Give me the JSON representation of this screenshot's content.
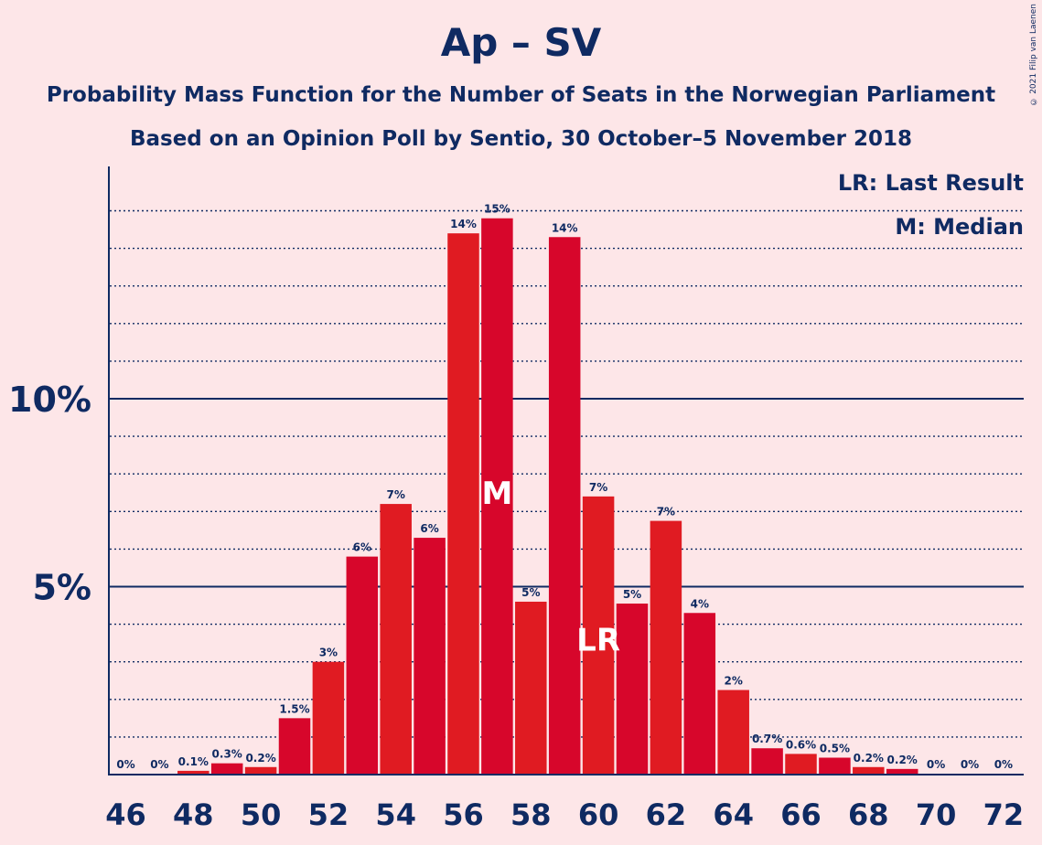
{
  "title": "Ap – SV",
  "subtitle_1": "Probability Mass Function for the Number of Seats in the Norwegian Parliament",
  "subtitle_2": "Based on an Opinion Poll by Sentio, 30 October–5 November 2018",
  "copyright": "© 2021 Filip van Laenen",
  "legend": {
    "last_result": "LR: Last Result",
    "median": "M: Median"
  },
  "colors": {
    "background": "#fde6e8",
    "bar_a": "#e01b22",
    "bar_b": "#d7062b",
    "text": "#0f2a62"
  },
  "chart_data": {
    "type": "bar",
    "title": "Ap – SV",
    "xlabel": "",
    "ylabel": "",
    "categories": [
      46,
      47,
      48,
      49,
      50,
      51,
      52,
      53,
      54,
      55,
      56,
      57,
      58,
      59,
      60,
      61,
      62,
      63,
      64,
      65,
      66,
      67,
      68,
      69,
      70,
      71,
      72
    ],
    "x_tick_labels": [
      "46",
      "48",
      "50",
      "52",
      "54",
      "56",
      "58",
      "60",
      "62",
      "64",
      "66",
      "68",
      "70",
      "72"
    ],
    "y_tick_labels": [
      "5%",
      "10%"
    ],
    "y_ticks": [
      5,
      10
    ],
    "ylim": [
      0,
      16.2
    ],
    "values": [
      0,
      0,
      0.1,
      0.3,
      0.2,
      1.5,
      3.0,
      5.8,
      7.2,
      6.3,
      14.4,
      14.8,
      4.6,
      14.3,
      7.4,
      4.55,
      6.75,
      4.3,
      2.25,
      0.7,
      0.55,
      0.45,
      0.2,
      0.15,
      0,
      0,
      0
    ],
    "data_labels": [
      "0%",
      "0%",
      "0.1%",
      "0.3%",
      "0.2%",
      "1.5%",
      "3%",
      "6%",
      "7%",
      "6%",
      "14%",
      "15%",
      "5%",
      "14%",
      "7%",
      "5%",
      "7%",
      "4%",
      "2%",
      "0.7%",
      "0.6%",
      "0.5%",
      "0.2%",
      "0.2%",
      "0%",
      "0%",
      "0%"
    ],
    "median_seat": 57,
    "median_label": "M",
    "last_result_seat": 60,
    "last_result_label": "LR",
    "grid": true
  }
}
